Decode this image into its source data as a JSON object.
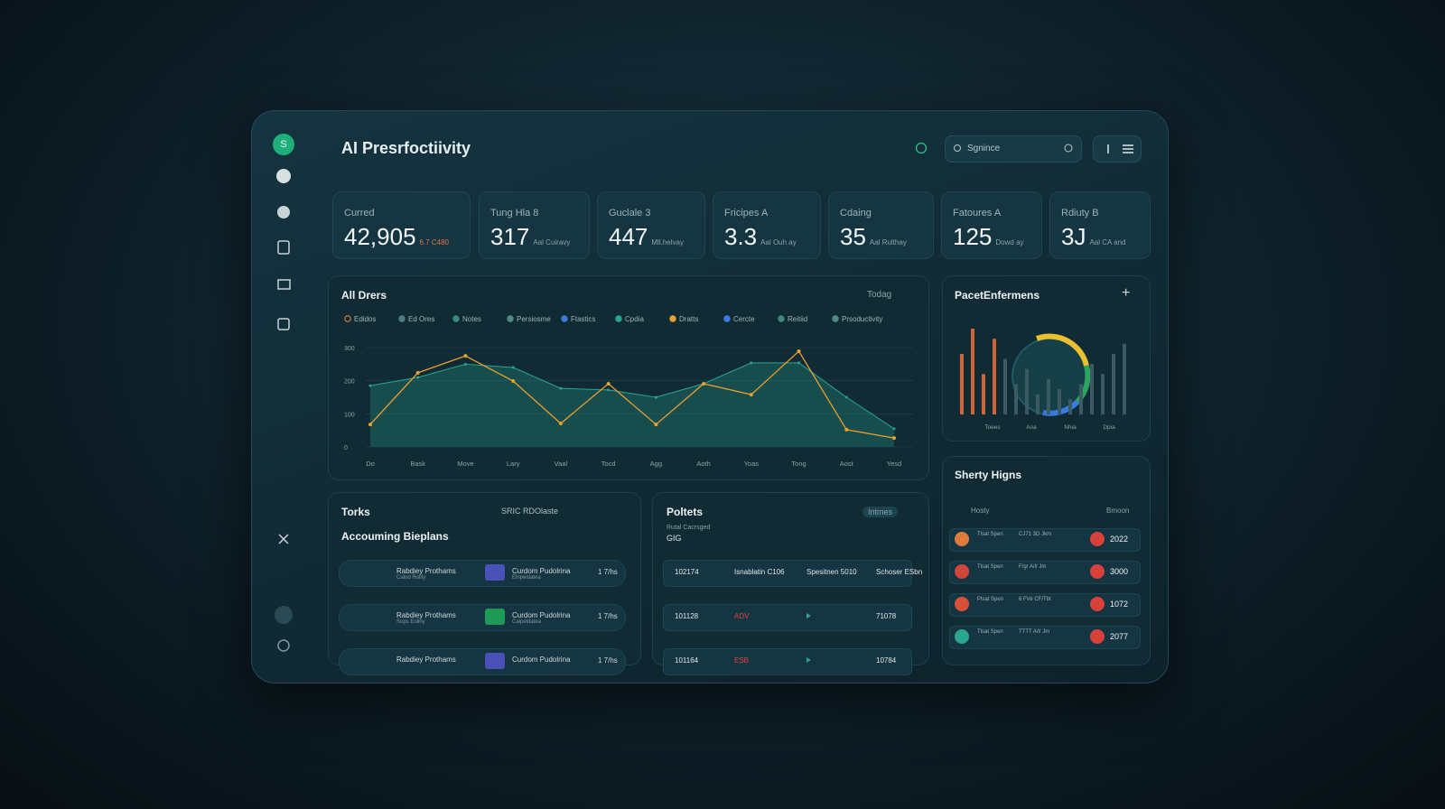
{
  "header": {
    "title": "AI Presrfoctiivity",
    "search": "Sgnince"
  },
  "sidebar": {
    "logo": "S"
  },
  "kpis": [
    {
      "label": "Curred",
      "value": "42,905",
      "note": "6.7 C480"
    },
    {
      "label": "Tung Hla 8",
      "value": "317",
      "note": "Aal Cuiravy"
    },
    {
      "label": "Guclale 3",
      "value": "447",
      "note": "Mll.helvay"
    },
    {
      "label": "Fricipes A",
      "value": "3.3",
      "note": "Aal Ouh ay"
    },
    {
      "label": "Cdaing",
      "value": "35",
      "note": "Aal Rulthay"
    },
    {
      "label": "Fatoures A",
      "value": "125",
      "note": "Dowd ay"
    },
    {
      "label": "Rdiuty B",
      "value": "3J",
      "note": "Aal CA and"
    }
  ],
  "main_chart": {
    "type": "line",
    "title": "All Drers",
    "period": "Todag",
    "legend": [
      {
        "name": "Edidos",
        "color": "#e08a3a"
      },
      {
        "name": "Ed Ores",
        "color": "#4f7d84"
      },
      {
        "name": "Notes",
        "color": "#3f8a80"
      },
      {
        "name": "Persiosme",
        "color": "#4f8a84"
      },
      {
        "name": "Ftastics",
        "color": "#3a7be0"
      },
      {
        "name": "Cpdia",
        "color": "#2aa58f"
      },
      {
        "name": "Dratts",
        "color": "#e8a030"
      },
      {
        "name": "Cercte",
        "color": "#3a7be0"
      },
      {
        "name": "Reitiid",
        "color": "#3f8a80"
      },
      {
        "name": "Prsoductivity",
        "color": "#4f8a84"
      }
    ],
    "categories": [
      "Do",
      "Bask",
      "Move",
      "Lary",
      "Vaal",
      "Tocd",
      "Agg",
      "Aoth",
      "Yoas",
      "Tong",
      "Aost",
      "Yesd"
    ],
    "series": [
      {
        "name": "Cpdia",
        "color": "#2aa58f",
        "values": [
          185,
          210,
          250,
          240,
          177,
          172,
          150,
          191,
          254,
          254,
          150,
          55
        ]
      },
      {
        "name": "Dratts",
        "color": "#e8a030",
        "values": [
          68,
          224,
          275,
          199,
          71,
          191,
          68,
          191,
          158,
          289,
          52,
          27
        ]
      }
    ],
    "ylim": [
      0,
      330
    ],
    "yticks": [
      0,
      100,
      200,
      300
    ]
  },
  "side_chart": {
    "type": "bar",
    "title": "PacetEnfermens",
    "axis_labels": [
      "Toees",
      "Aoa",
      "Nhia",
      "Dpia"
    ],
    "values": [
      60,
      85,
      40,
      75,
      55,
      30,
      45,
      20,
      35,
      25,
      15,
      30,
      50,
      40,
      60,
      70
    ]
  },
  "tasks": {
    "title": "Torks",
    "badge": "SRIC RDOlaste",
    "subtitle": "Accouming Bieplans",
    "rows": [
      [
        "Rabdiey Prothams",
        "Calod Rolity",
        "Curdom Pudolrina",
        "Elnpeidatea",
        "1 7/hs"
      ],
      [
        "Rabdiey Prothams",
        "Sups Eoliny",
        "Curdom Pudolrina",
        "Calpeidatea",
        "1 7/hs"
      ],
      [
        "Rabdiey Prothams",
        "",
        "Curdom Pudolrina",
        "",
        "1 7/hs"
      ]
    ]
  },
  "polters": {
    "title": "Poltets",
    "badge": "Intmes",
    "subtitle": "Rutal Cacrsged",
    "sub_value": "GIG",
    "rows": [
      [
        "102174",
        "Isnablatin C106",
        "Spesitnen 5010",
        "Schoser ESbn"
      ],
      [
        "101128",
        "ADV",
        "",
        "71078"
      ],
      [
        "101164",
        "ESB",
        "",
        "10784"
      ]
    ]
  },
  "highs": {
    "title": "Sherty Higns",
    "col1": "Hosty",
    "col2": "Bmoon",
    "rows": [
      {
        "name": "Tlsat Spen",
        "detail": "CJ71 3D Jkm",
        "value": "2022"
      },
      {
        "name": "Tlsat Spen",
        "detail": "F/gr A/l/ Jm",
        "value": "3000"
      },
      {
        "name": "Plsat Spen",
        "detail": "6 FVe CF/Tbt",
        "value": "1072"
      },
      {
        "name": "Tlsat Spen",
        "detail": "TTTT A/l/ Jm",
        "value": "2077"
      }
    ]
  }
}
